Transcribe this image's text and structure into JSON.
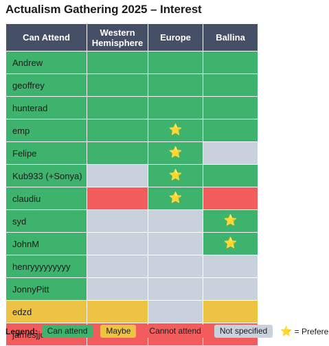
{
  "title": "Actualism Gathering 2025 – Interest",
  "table": {
    "columns": [
      "Can Attend",
      "Western\nHemisphere",
      "Europe",
      "Ballina"
    ],
    "rows": [
      {
        "name": "Andrew",
        "cells": [
          {
            "s": "green",
            "star": false
          },
          {
            "s": "green",
            "star": false
          },
          {
            "s": "green",
            "star": false
          }
        ]
      },
      {
        "name": "geoffrey",
        "cells": [
          {
            "s": "green",
            "star": false
          },
          {
            "s": "green",
            "star": false
          },
          {
            "s": "green",
            "star": false
          }
        ]
      },
      {
        "name": "hunterad",
        "cells": [
          {
            "s": "green",
            "star": false
          },
          {
            "s": "green",
            "star": false
          },
          {
            "s": "green",
            "star": false
          }
        ]
      },
      {
        "name": "emp",
        "cells": [
          {
            "s": "green",
            "star": false
          },
          {
            "s": "green",
            "star": true
          },
          {
            "s": "green",
            "star": false
          }
        ]
      },
      {
        "name": "Felipe",
        "cells": [
          {
            "s": "green",
            "star": false
          },
          {
            "s": "green",
            "star": true
          },
          {
            "s": "grey",
            "star": false
          }
        ]
      },
      {
        "name": "Kub933 (+Sonya)",
        "cells": [
          {
            "s": "grey",
            "star": false
          },
          {
            "s": "green",
            "star": true
          },
          {
            "s": "green",
            "star": false
          }
        ]
      },
      {
        "name": "claudiu",
        "cells": [
          {
            "s": "red",
            "star": false
          },
          {
            "s": "green",
            "star": true
          },
          {
            "s": "red",
            "star": false
          }
        ]
      },
      {
        "name": "syd",
        "cells": [
          {
            "s": "grey",
            "star": false
          },
          {
            "s": "grey",
            "star": false
          },
          {
            "s": "green",
            "star": true
          }
        ]
      },
      {
        "name": "JohnM",
        "cells": [
          {
            "s": "grey",
            "star": false
          },
          {
            "s": "grey",
            "star": false
          },
          {
            "s": "green",
            "star": true
          }
        ]
      },
      {
        "name": "henryyyyyyyyy",
        "cells": [
          {
            "s": "grey",
            "star": false
          },
          {
            "s": "grey",
            "star": false
          },
          {
            "s": "grey",
            "star": false
          }
        ]
      },
      {
        "name": "JonnyPitt",
        "cells": [
          {
            "s": "grey",
            "star": false
          },
          {
            "s": "grey",
            "star": false
          },
          {
            "s": "grey",
            "star": false
          }
        ]
      },
      {
        "name": "edzd",
        "cells": [
          {
            "s": "yellow",
            "star": false
          },
          {
            "s": "grey",
            "star": false
          },
          {
            "s": "yellow",
            "star": false
          }
        ]
      },
      {
        "name": "jamesjjoo",
        "cells": [
          {
            "s": "red",
            "star": false
          },
          {
            "s": "red",
            "star": false
          },
          {
            "s": "red",
            "star": false
          }
        ]
      }
    ],
    "name_status": [
      "green",
      "green",
      "green",
      "green",
      "green",
      "green",
      "green",
      "green",
      "green",
      "green",
      "green",
      "yellow",
      "red"
    ]
  },
  "legend": {
    "label": "Legend:",
    "items": [
      {
        "label": "Can attend",
        "color": "#3db36e"
      },
      {
        "label": "Maybe",
        "color": "#ecc342"
      },
      {
        "label": "Cannot attend",
        "color": "#f25c5c"
      },
      {
        "label": "Not specified",
        "color": "#c9d1dd"
      }
    ],
    "star_symbol": "⭐",
    "preference_label": "= Preference"
  },
  "colors": {
    "header_bg": "#454f66",
    "green": "#3db36e",
    "yellow": "#ecc342",
    "red": "#f25c5c",
    "grey": "#c9d1dd"
  }
}
